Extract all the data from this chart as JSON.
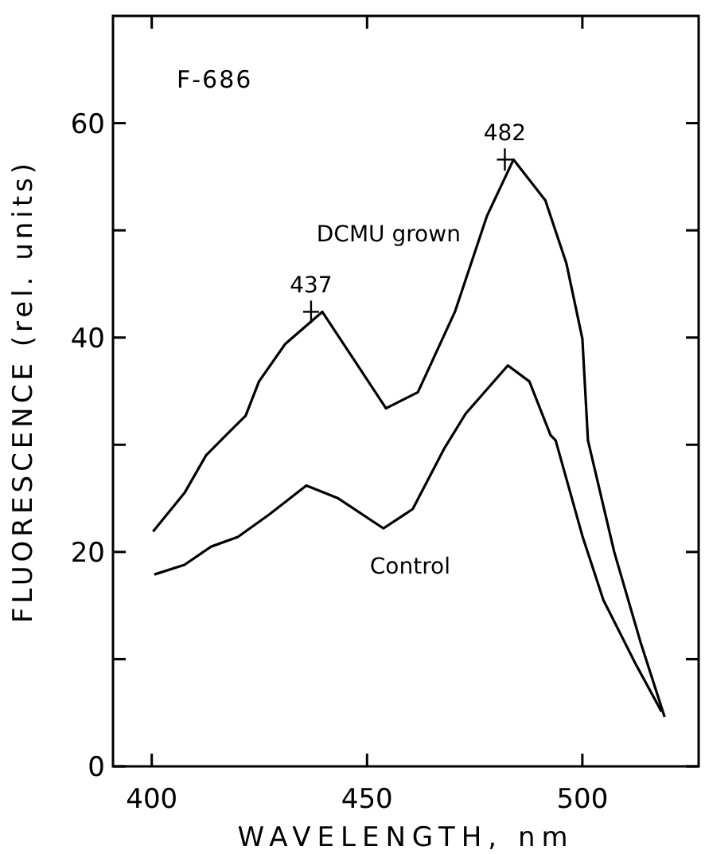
{
  "chart_data": {
    "type": "line",
    "xlabel": "WAVELENGTH, nm",
    "ylabel": "FLUORESCENCE (rel. units)",
    "xlim": [
      391,
      527
    ],
    "xticks": [
      400,
      450,
      500
    ],
    "ylim": [
      0,
      70
    ],
    "yticks": [
      0,
      {
        "value": 10,
        "label": null
      },
      20,
      {
        "value": 30,
        "label": null
      },
      40,
      {
        "value": 50,
        "label": null
      },
      60
    ],
    "series": [
      {
        "name": "DCMU grown",
        "color": "#000000",
        "x": [
          400.3,
          407.6,
          412.6,
          417.5,
          421.8,
          424.9,
          431,
          439.6,
          447,
          454.4,
          461.8,
          470.4,
          477.8,
          484,
          491.4,
          496.3,
          500,
          501.3,
          507.4,
          513.5,
          519.1
        ],
        "values": [
          21.9,
          25.5,
          29,
          31,
          32.7,
          35.9,
          39.4,
          42.4,
          37.9,
          33.4,
          34.9,
          42.4,
          51.3,
          56.6,
          52.8,
          46.9,
          39.9,
          30.4,
          20,
          11.6,
          4.6
        ]
      },
      {
        "name": "Control",
        "color": "#000000",
        "x": [
          400.6,
          407.6,
          413.8,
          420,
          427.3,
          435.9,
          443.3,
          453.8,
          460.6,
          468,
          472.9,
          482.7,
          487.7,
          492.6,
          493.8,
          500,
          504.9,
          512.3,
          518.4
        ],
        "values": [
          17.9,
          18.8,
          20.5,
          21.4,
          23.5,
          26.2,
          25,
          22.2,
          24,
          29.7,
          32.9,
          37.4,
          35.9,
          30.9,
          30.4,
          21.5,
          15.5,
          9.6,
          5.1
        ]
      }
    ],
    "annotations": [
      "F-686",
      {
        "text": "437",
        "x": 437,
        "y": 42.4
      },
      {
        "text": "482",
        "x": 482,
        "y": 56.6
      }
    ]
  }
}
